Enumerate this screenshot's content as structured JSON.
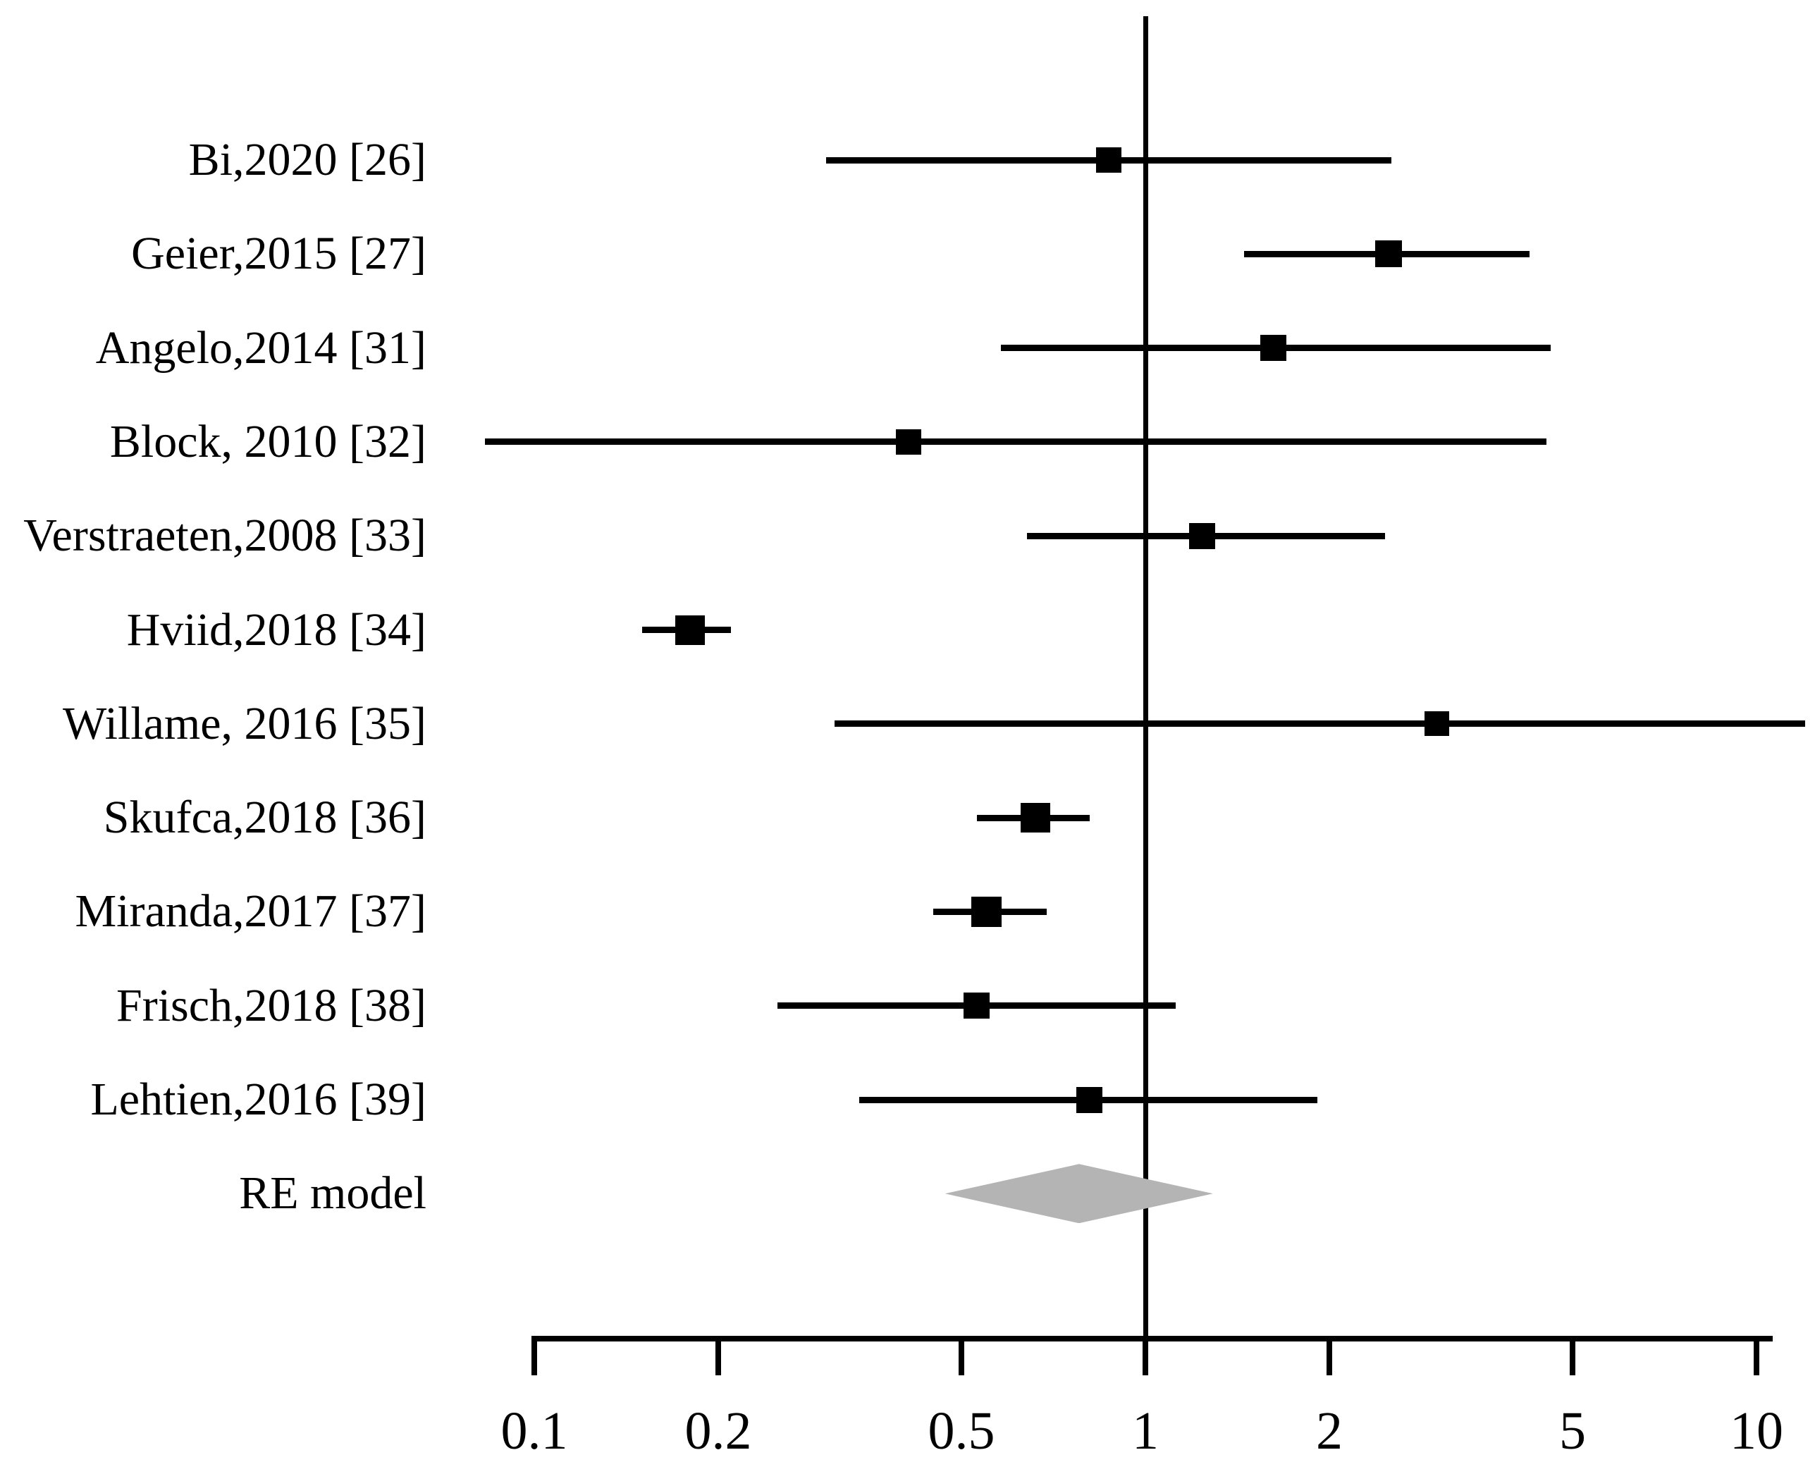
{
  "chart_data": {
    "type": "forest",
    "title": "",
    "x_axis": {
      "scale": "log10",
      "ticks": [
        0.1,
        0.2,
        0.5,
        1,
        2,
        5,
        10
      ],
      "tick_labels": [
        "0.1",
        "0.2",
        "0.5",
        "1",
        "2",
        "5",
        "10"
      ],
      "range": [
        0.1,
        12
      ],
      "reference_line": 1,
      "grid": false
    },
    "studies": [
      {
        "label": "Bi,2020 [26]",
        "estimate": 0.87,
        "ci_lower": 0.3,
        "ci_upper": 2.53,
        "marker_size": 36
      },
      {
        "label": "Geier,2015 [27]",
        "estimate": 2.5,
        "ci_lower": 1.45,
        "ci_upper": 4.25,
        "marker_size": 38
      },
      {
        "label": "Angelo,2014 [31]",
        "estimate": 1.62,
        "ci_lower": 0.58,
        "ci_upper": 4.6,
        "marker_size": 37
      },
      {
        "label": "Block, 2010 [32]",
        "estimate": 0.41,
        "ci_lower": 0.083,
        "ci_upper": 4.53,
        "marker_size": 36
      },
      {
        "label": "Verstraeten,2008 [33]",
        "estimate": 1.24,
        "ci_lower": 0.64,
        "ci_upper": 2.47,
        "marker_size": 37
      },
      {
        "label": "Hviid,2018 [34]",
        "estimate": 0.18,
        "ci_lower": 0.15,
        "ci_upper": 0.21,
        "marker_size": 42
      },
      {
        "label": "Willame, 2016 [35]",
        "estimate": 3.0,
        "ci_lower": 0.31,
        "ci_upper": 12.0,
        "marker_size": 35,
        "ci_upper_clipped": true
      },
      {
        "label": "Skufca,2018 [36]",
        "estimate": 0.66,
        "ci_lower": 0.53,
        "ci_upper": 0.81,
        "marker_size": 42
      },
      {
        "label": "Miranda,2017 [37]",
        "estimate": 0.55,
        "ci_lower": 0.45,
        "ci_upper": 0.69,
        "marker_size": 43
      },
      {
        "label": "Frisch,2018 [38]",
        "estimate": 0.53,
        "ci_lower": 0.25,
        "ci_upper": 1.12,
        "marker_size": 37
      },
      {
        "label": "Lehtien,2016 [39]",
        "estimate": 0.81,
        "ci_lower": 0.34,
        "ci_upper": 1.91,
        "marker_size": 37
      }
    ],
    "summary": {
      "label": "RE model",
      "estimate": 0.78,
      "ci_lower": 0.47,
      "ci_upper": 1.29,
      "shape": "diamond",
      "color": "#b4b4b4"
    },
    "legend": null
  },
  "colors": {
    "marker": "#000000",
    "line": "#000000",
    "diamond_fill": "#b4b4b4",
    "background": "#ffffff"
  }
}
